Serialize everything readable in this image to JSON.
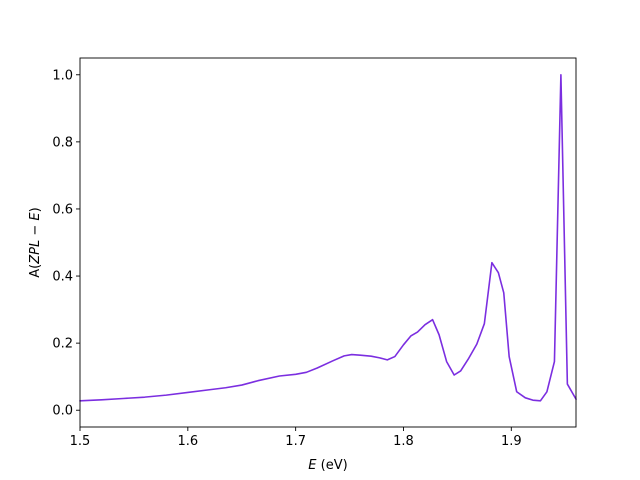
{
  "chart_data": {
    "type": "line",
    "title": "",
    "xlabel": "E (eV)",
    "xlabel_parts": {
      "var": "E",
      "unit": " (eV)"
    },
    "ylabel": "A(ZPL − E)",
    "ylabel_parts": {
      "fn": "A(",
      "var": "ZPL",
      "minus": " − ",
      "var2": "E",
      "close": ")"
    },
    "xlim": [
      1.5,
      1.96
    ],
    "ylim": [
      -0.05,
      1.05
    ],
    "xticks": [
      1.5,
      1.6,
      1.7,
      1.8,
      1.9
    ],
    "xtick_labels": [
      "1.5",
      "1.6",
      "1.7",
      "1.8",
      "1.9"
    ],
    "yticks": [
      0.0,
      0.2,
      0.4,
      0.6,
      0.8,
      1.0
    ],
    "ytick_labels": [
      "0.0",
      "0.2",
      "0.4",
      "0.6",
      "0.8",
      "1.0"
    ],
    "grid": false,
    "series": [
      {
        "name": "A(ZPL − E)",
        "color": "#7b2ee0",
        "x": [
          1.5,
          1.52,
          1.54,
          1.56,
          1.58,
          1.6,
          1.62,
          1.635,
          1.65,
          1.665,
          1.685,
          1.7,
          1.71,
          1.72,
          1.735,
          1.745,
          1.752,
          1.76,
          1.77,
          1.778,
          1.785,
          1.792,
          1.8,
          1.807,
          1.813,
          1.82,
          1.827,
          1.833,
          1.84,
          1.847,
          1.853,
          1.86,
          1.868,
          1.875,
          1.882,
          1.888,
          1.893,
          1.898,
          1.905,
          1.913,
          1.92,
          1.927,
          1.933,
          1.94,
          1.946,
          1.952,
          1.96
        ],
        "y": [
          0.028,
          0.031,
          0.035,
          0.039,
          0.045,
          0.053,
          0.061,
          0.067,
          0.075,
          0.088,
          0.102,
          0.107,
          0.113,
          0.126,
          0.148,
          0.162,
          0.166,
          0.164,
          0.161,
          0.156,
          0.15,
          0.16,
          0.195,
          0.222,
          0.233,
          0.255,
          0.27,
          0.225,
          0.145,
          0.105,
          0.117,
          0.152,
          0.197,
          0.258,
          0.44,
          0.41,
          0.35,
          0.16,
          0.055,
          0.037,
          0.03,
          0.028,
          0.055,
          0.145,
          1.0,
          0.078,
          0.033
        ]
      }
    ]
  }
}
